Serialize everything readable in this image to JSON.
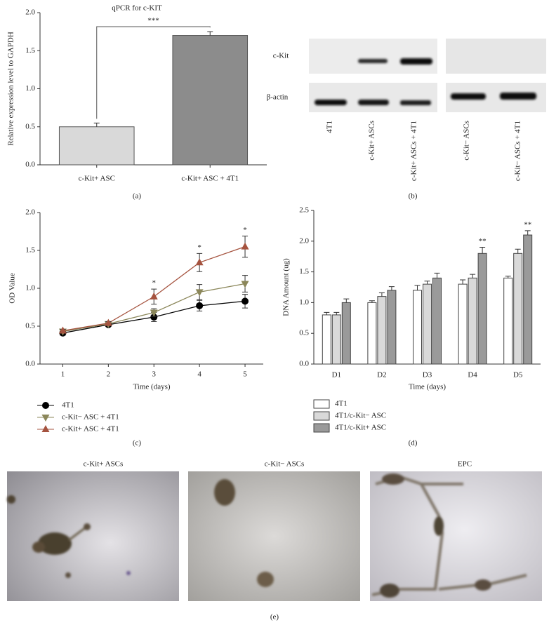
{
  "chart_data": [
    {
      "type": "bar",
      "title": "qPCR for c-KIT",
      "panel_label": "(a)",
      "y_label": "Relative expression level to GAPDH",
      "categories": [
        "c-Kit+ ASC",
        "c-Kit+ ASC + 4T1"
      ],
      "values": [
        0.5,
        1.7
      ],
      "errors": [
        0.05,
        0.05
      ],
      "colors": [
        "#d9d9d9",
        "#8c8c8c"
      ],
      "ylim": [
        0,
        2
      ],
      "yticks": [
        {
          "value": 0,
          "label": "0.0"
        },
        0.5,
        {
          "value": 1,
          "label": "1.0"
        },
        1.5,
        {
          "value": 2,
          "label": "2.0"
        }
      ],
      "significance": "***"
    },
    {
      "type": "line",
      "panel_label": "(c)",
      "x_label": "Time (days)",
      "y_label": "OD Value",
      "x": [
        1,
        2,
        3,
        4,
        5
      ],
      "xlim": [
        0.5,
        5.4
      ],
      "xticks": [
        1,
        2,
        3,
        4,
        5
      ],
      "ylim": [
        0,
        2
      ],
      "yticks": [
        {
          "value": 0,
          "label": "0.0"
        },
        0.5,
        {
          "value": 1,
          "label": "1.0"
        },
        1.5,
        {
          "value": 2,
          "label": "2.0"
        }
      ],
      "series": [
        {
          "name": "4T1",
          "color": "#000000",
          "marker": "circle",
          "values": [
            0.41,
            0.52,
            0.62,
            0.77,
            0.83
          ],
          "errors": [
            0.03,
            0.02,
            0.06,
            0.07,
            0.09
          ]
        },
        {
          "name": "c-Kit− ASC + 4T1",
          "color": "#8b875a",
          "marker": "triangle-down",
          "values": [
            0.43,
            0.53,
            0.68,
            0.95,
            1.06
          ],
          "errors": [
            0.02,
            0.02,
            0.05,
            0.1,
            0.11
          ]
        },
        {
          "name": "c-Kit+ ASC + 4T1",
          "color": "#a5533f",
          "marker": "triangle-up",
          "values": [
            0.44,
            0.54,
            0.89,
            1.34,
            1.55
          ],
          "errors": [
            0.02,
            0.02,
            0.1,
            0.12,
            0.14
          ]
        }
      ],
      "annotations": [
        {
          "x": 3,
          "text": "*"
        },
        {
          "x": 4,
          "text": "*"
        },
        {
          "x": 5,
          "text": "*"
        }
      ]
    },
    {
      "type": "grouped_bar",
      "panel_label": "(d)",
      "x_label": "Time (days)",
      "y_label": "DNA Amount (ug)",
      "categories": [
        "D1",
        "D2",
        "D3",
        "D4",
        "D5"
      ],
      "ylim": [
        0,
        2.5
      ],
      "yticks": [
        {
          "value": 0,
          "label": "0.0"
        },
        0.5,
        {
          "value": 1,
          "label": "1.0"
        },
        1.5,
        {
          "value": 2,
          "label": "2.0"
        },
        2.5
      ],
      "series": [
        {
          "name": "4T1",
          "color": "#ffffff",
          "values": [
            0.8,
            1.0,
            1.2,
            1.3,
            1.4
          ],
          "errors": [
            0.04,
            0.03,
            0.08,
            0.07,
            0.03
          ]
        },
        {
          "name": "4T1/c-Kit− ASC",
          "color": "#d9d9d9",
          "values": [
            0.8,
            1.1,
            1.3,
            1.4,
            1.8
          ],
          "errors": [
            0.04,
            0.06,
            0.05,
            0.06,
            0.07
          ]
        },
        {
          "name": "4T1/c-Kit+ ASC",
          "color": "#9a9a9a",
          "values": [
            1.0,
            1.2,
            1.4,
            1.8,
            2.1
          ],
          "errors": [
            0.06,
            0.06,
            0.08,
            0.1,
            0.07
          ]
        }
      ],
      "annotations": [
        {
          "category": "D4",
          "text": "**"
        },
        {
          "category": "D5",
          "text": "**"
        }
      ]
    }
  ],
  "blot": {
    "panel_label": "(b)",
    "rows": [
      "c-Kit",
      "β-actin"
    ],
    "lanes": [
      "4T1",
      "c-Kit+ ASCs",
      "c-Kit+ ASCs + 4T1",
      "c-Kit− ASCs",
      "c-Kit− ASCs + 4T1"
    ]
  },
  "micrographs": {
    "panel_label": "(e)",
    "titles": [
      "c-Kit+ ASCs",
      "c-Kit− ASCs",
      "EPC"
    ]
  }
}
